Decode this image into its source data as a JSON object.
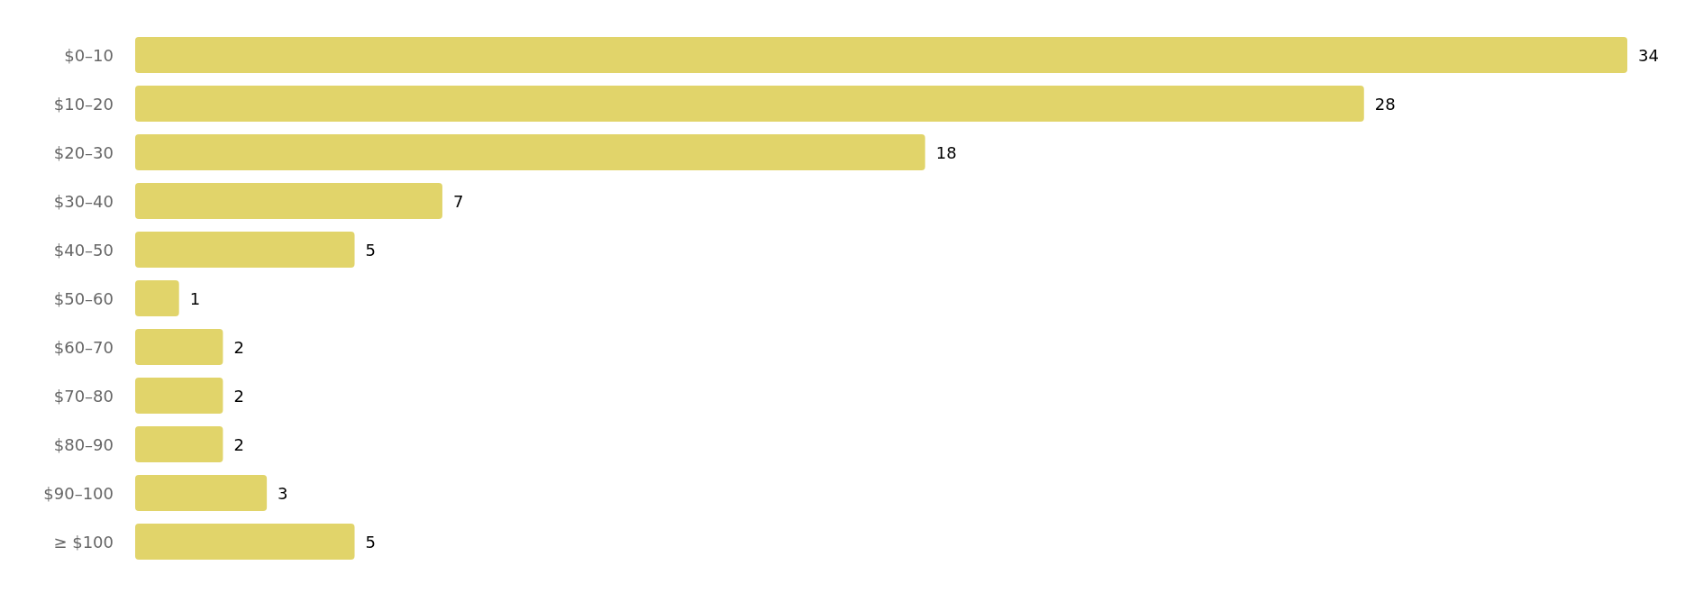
{
  "chart_data": {
    "type": "bar",
    "orientation": "horizontal",
    "categories": [
      "$0–10",
      "$10–20",
      "$20–30",
      "$30–40",
      "$40–50",
      "$50–60",
      "$60–70",
      "$70–80",
      "$80–90",
      "$90–100",
      "≥ $100"
    ],
    "values": [
      34,
      28,
      18,
      7,
      5,
      1,
      2,
      2,
      2,
      3,
      5
    ],
    "color": "#e1d46a",
    "data_labels": true
  }
}
